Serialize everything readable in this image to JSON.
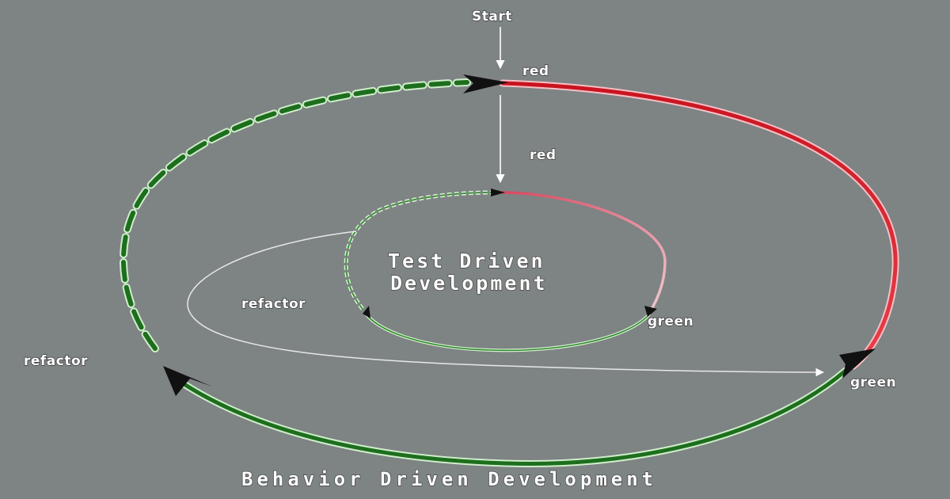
{
  "labels": {
    "start": "Start",
    "outer_red": "red",
    "inner_red": "red",
    "inner_green": "green",
    "outer_green": "green",
    "inner_refactor": "refactor",
    "outer_refactor": "refactor",
    "tdd_line1": "Test Driven",
    "tdd_line2": "Development",
    "bdd_title": "Behavior Driven Development"
  },
  "colors": {
    "background": "#7e8384",
    "red_phase": "#d41c26",
    "green_phase": "#1f7a1f",
    "light_green": "#d8f0d0",
    "arrow": "#ffffff",
    "arrowhead": "#111111"
  }
}
